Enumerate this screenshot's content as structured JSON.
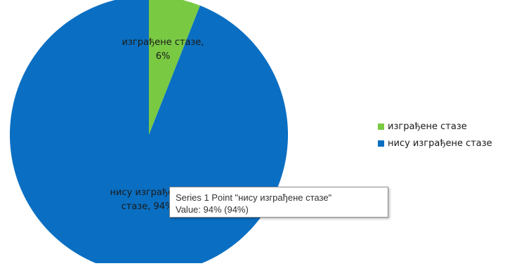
{
  "chart_data": {
    "type": "pie",
    "categories": [
      "изграђене стазе",
      "нису изграђене стазе"
    ],
    "values": [
      6,
      94
    ],
    "colors": [
      "#7AC943",
      "#0A6FC2"
    ],
    "data_labels": [
      {
        "line1": "изграђене стазе,",
        "line2": "6%"
      },
      {
        "line1": "нису изграђене",
        "line2": "стазе, 94%"
      }
    ],
    "legend": {
      "placement": "right",
      "items": [
        "изграђене стазе",
        "нису изграђене стазе"
      ]
    }
  },
  "tooltip": {
    "line1": "Series 1 Point \"нису изграђене стазе\"",
    "line2": "Value: 94% (94%)"
  }
}
